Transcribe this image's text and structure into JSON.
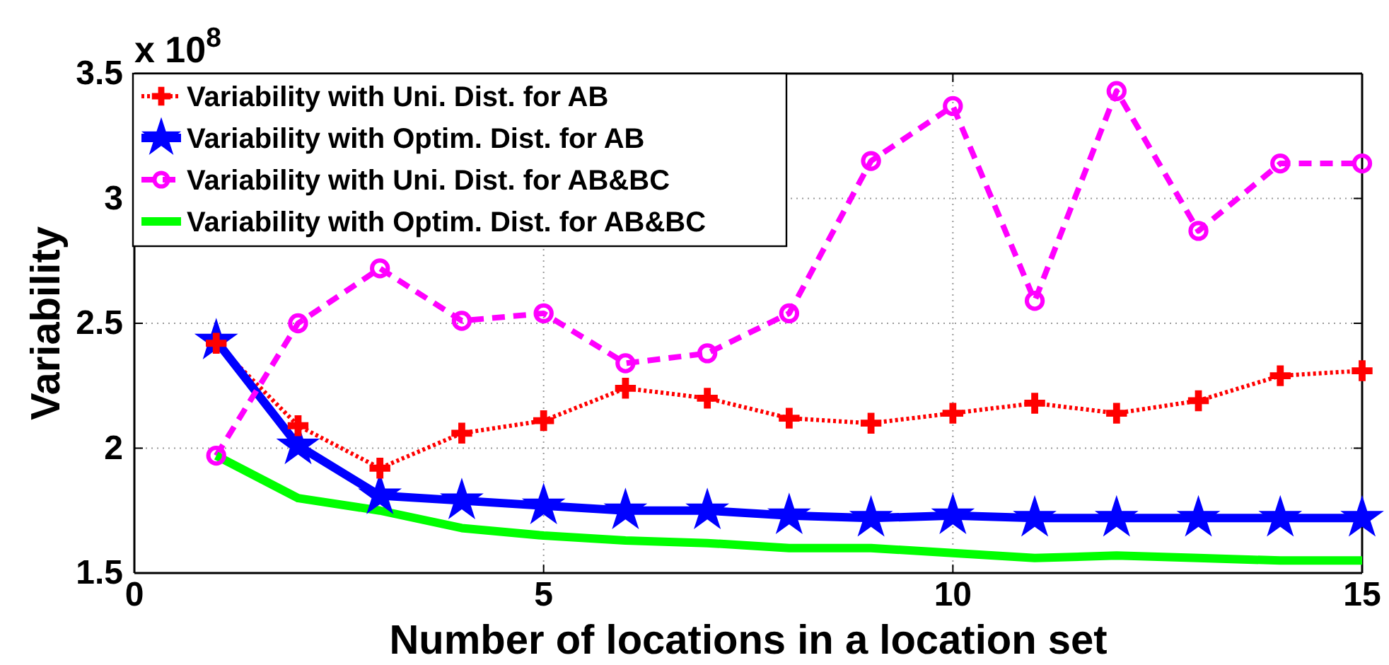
{
  "chart_data": {
    "type": "line",
    "xlabel": "Number of locations in a location set",
    "ylabel": "Variability",
    "annotations": [
      "x 10$^{8}$"
    ],
    "x": [
      1,
      2,
      3,
      4,
      5,
      6,
      7,
      8,
      9,
      10,
      11,
      12,
      13,
      14,
      15
    ],
    "xlim": [
      0,
      15
    ],
    "xticks": [
      0,
      5,
      10,
      15
    ],
    "ylim": [
      1.5,
      3.5
    ],
    "yticks": [
      1.5,
      2,
      2.5,
      3,
      3.5
    ],
    "grid": true,
    "legend": "top left",
    "series": [
      {
        "name": "Variability with Uni. Dist. for AB",
        "color": "#ff0000",
        "marker": "cross",
        "line_style": "dotted",
        "values": [
          2.42,
          2.09,
          1.92,
          2.06,
          2.11,
          2.24,
          2.2,
          2.12,
          2.1,
          2.14,
          2.18,
          2.14,
          2.19,
          2.29,
          2.31
        ]
      },
      {
        "name": "Variability with Optim. Dist. for AB",
        "color": "#0000ff",
        "marker": "star",
        "line_style": "solid",
        "values": [
          2.43,
          2.01,
          1.81,
          1.79,
          1.77,
          1.75,
          1.75,
          1.73,
          1.72,
          1.73,
          1.72,
          1.72,
          1.72,
          1.72,
          1.72
        ]
      },
      {
        "name": "Variability with Uni. Dist. for AB&BC",
        "color": "#ff00ff",
        "marker": "circle",
        "line_style": "dashed",
        "values": [
          1.97,
          2.5,
          2.72,
          2.51,
          2.54,
          2.34,
          2.38,
          2.54,
          3.15,
          3.37,
          2.59,
          3.43,
          2.87,
          3.14,
          3.14
        ]
      },
      {
        "name": "Variability with Optim. Dist. for AB&BC",
        "color": "#00ff00",
        "marker": "none",
        "line_style": "solid",
        "values": [
          1.97,
          1.8,
          1.75,
          1.68,
          1.65,
          1.63,
          1.62,
          1.6,
          1.6,
          1.58,
          1.56,
          1.57,
          1.56,
          1.55,
          1.55
        ]
      }
    ]
  }
}
